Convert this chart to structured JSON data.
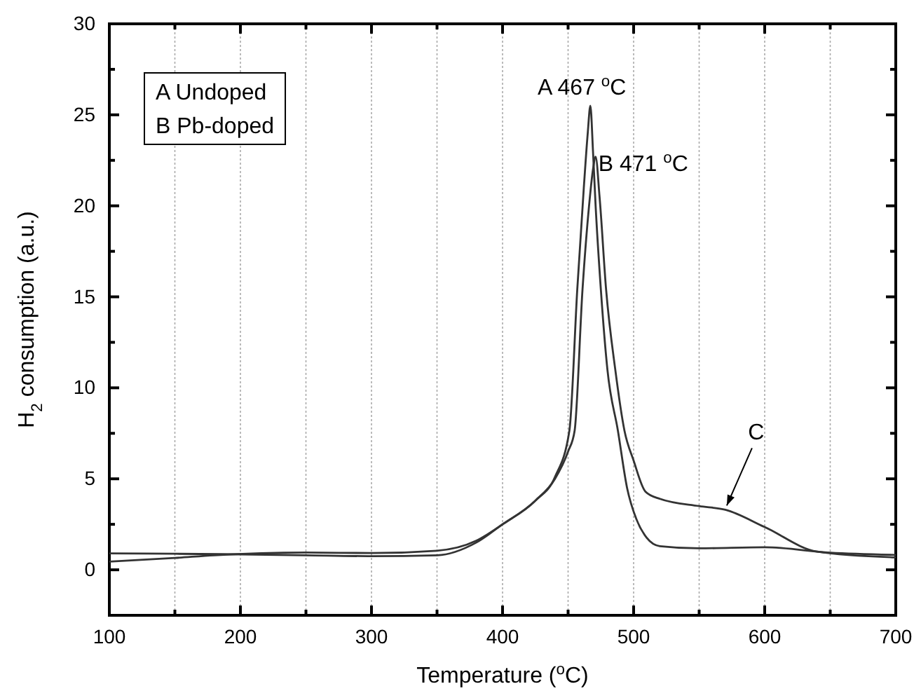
{
  "chart_data": {
    "type": "line",
    "xlabel": "Temperature ($^{o}$C)",
    "ylabel": "H$_{2}$ consumption (a.u.)",
    "xlim": [
      100,
      700
    ],
    "ylim": [
      -2.5,
      30
    ],
    "xticks": [
      100,
      {
        "value": 150,
        "label": null
      },
      200,
      {
        "value": 250,
        "label": null
      },
      300,
      {
        "value": 350,
        "label": null
      },
      400,
      {
        "value": 450,
        "label": null
      },
      500,
      {
        "value": 550,
        "label": null
      },
      600,
      {
        "value": 650,
        "label": null
      },
      700
    ],
    "yticks": [
      0,
      {
        "value": 2.5,
        "label": null
      },
      5,
      {
        "value": 7.5,
        "label": null
      },
      10,
      {
        "value": 12.5,
        "label": null
      },
      15,
      {
        "value": 17.5,
        "label": null
      },
      20,
      {
        "value": 22.5,
        "label": null
      },
      25,
      {
        "value": 27.5,
        "label": null
      },
      30
    ],
    "grid": "x",
    "line_style": "solid",
    "marker": "none",
    "series": [
      {
        "color": "#333333",
        "x": [
          100,
          150,
          200,
          250,
          300,
          350,
          380,
          400,
          425,
          440,
          451,
          457,
          462,
          465,
          467,
          469,
          471,
          475,
          480,
          488,
          495,
          502,
          510,
          520,
          550,
          600,
          650,
          700
        ],
        "values": [
          0.9,
          0.88,
          0.85,
          0.8,
          0.75,
          0.8,
          1.5,
          2.5,
          3.8,
          5.1,
          7.65,
          15.4,
          21,
          24,
          25.5,
          23,
          20,
          15.4,
          11,
          7.65,
          4.5,
          2.8,
          1.76,
          1.3,
          1.18,
          1.24,
          0.94,
          0.82
        ]
      },
      {
        "color": "#333333",
        "x": [
          100,
          150,
          180,
          250,
          300,
          350,
          380,
          400,
          425,
          440,
          450,
          455,
          461,
          466,
          469,
          471,
          474,
          479,
          486,
          493,
          500,
          509,
          520,
          550,
          570,
          600,
          640,
          700
        ],
        "values": [
          0.45,
          0.65,
          0.8,
          0.95,
          0.92,
          1.05,
          1.6,
          2.5,
          3.8,
          5.0,
          6.5,
          7.65,
          15.4,
          20,
          22,
          22.7,
          20.5,
          15.4,
          11,
          7.65,
          6.0,
          4.3,
          3.9,
          3.5,
          3.3,
          2.35,
          1.0,
          0.68
        ]
      }
    ],
    "annotations": [
      "A Undoped",
      "B Pb-doped",
      {
        "text": "A 467 $^{o}$C",
        "x": 467,
        "y": 25.5
      },
      {
        "text": "B 471 $^{o}$C",
        "x": 471,
        "y": 22.7
      },
      {
        "text": "C",
        "x": 570,
        "y": 3.3
      }
    ]
  }
}
